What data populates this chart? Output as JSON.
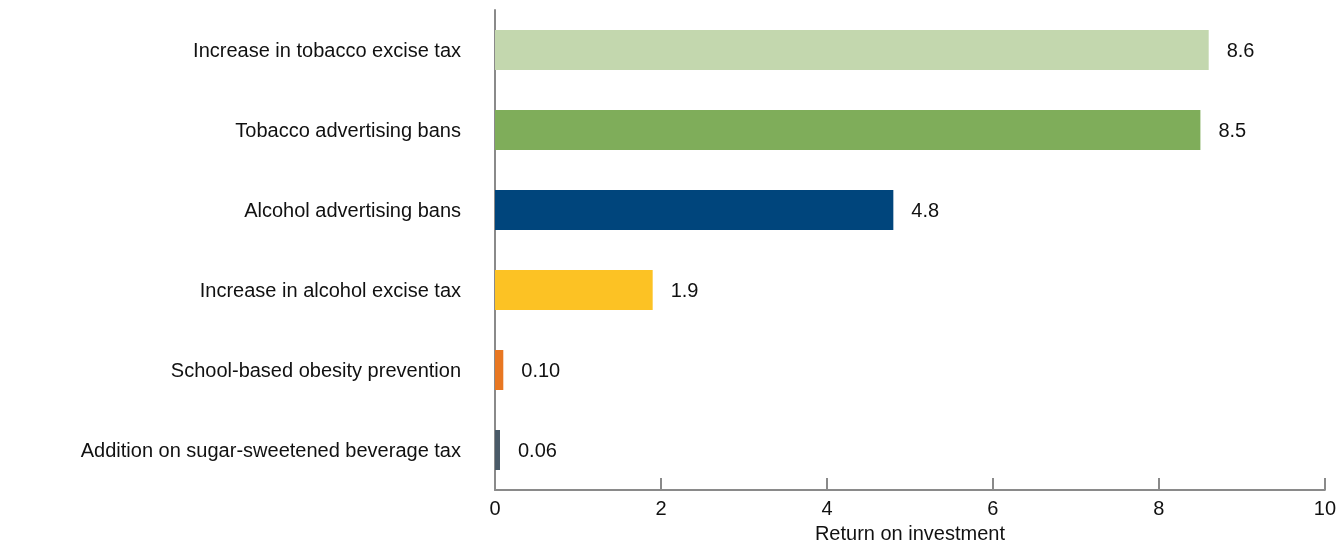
{
  "chart_data": {
    "type": "bar",
    "orientation": "horizontal",
    "xlabel": "Return on investment",
    "categories": [
      "Increase in tobacco excise tax",
      "Tobacco advertising bans",
      "Alcohol advertising bans",
      "Increase in alcohol excise tax",
      "School-based obesity prevention",
      "Addition on sugar-sweetened beverage tax"
    ],
    "values": [
      8.6,
      8.5,
      4.8,
      1.9,
      0.1,
      0.06
    ],
    "value_labels": [
      "8.6",
      "8.5",
      "4.8",
      "1.9",
      "0.10",
      "0.06"
    ],
    "colors": [
      "#c3d7ae",
      "#7fad5a",
      "#00457c",
      "#fcc224",
      "#e87722",
      "#4a5a68"
    ],
    "xlim": [
      0,
      10
    ],
    "xticks": [
      0,
      2,
      4,
      6,
      8,
      10
    ],
    "grid": false
  }
}
